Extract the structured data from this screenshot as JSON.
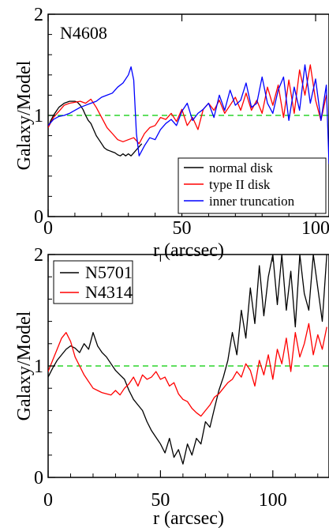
{
  "chart_data": [
    {
      "type": "line",
      "title": "N4608",
      "xlabel": "r (arcsec)",
      "ylabel": "Galaxy/Model",
      "xlim": [
        0,
        105
      ],
      "ylim": [
        0,
        2
      ],
      "x_ticks": [
        "0",
        "50",
        "100"
      ],
      "y_ticks": [
        "0",
        "1",
        "2"
      ],
      "reference_line": {
        "y": 1,
        "color": "#00cc00",
        "style": "dashed"
      },
      "legend": {
        "placement": "bottom-right"
      },
      "series": [
        {
          "name": "normal disk",
          "color": "#000000",
          "x": [
            0,
            1,
            2,
            3,
            4,
            5,
            6,
            7,
            8,
            9,
            10,
            11,
            12,
            13,
            14,
            15,
            16,
            17,
            18,
            19,
            20,
            21,
            22,
            23,
            24,
            25,
            26,
            27,
            28,
            29,
            30,
            31,
            32,
            33,
            34,
            35
          ],
          "y": [
            0.88,
            0.95,
            1.0,
            1.04,
            1.08,
            1.1,
            1.12,
            1.13,
            1.14,
            1.14,
            1.14,
            1.13,
            1.1,
            1.06,
            1.0,
            0.95,
            0.92,
            0.86,
            0.8,
            0.76,
            0.72,
            0.68,
            0.66,
            0.65,
            0.64,
            0.63,
            0.61,
            0.6,
            0.62,
            0.6,
            0.62,
            0.6,
            0.63,
            0.66,
            0.69,
            0.72
          ]
        },
        {
          "name": "type II disk",
          "color": "#ff0000",
          "x": [
            0,
            2,
            4,
            6,
            8,
            10,
            12,
            14,
            16,
            18,
            20,
            22,
            24,
            26,
            28,
            30,
            32,
            34,
            36,
            38,
            40,
            42,
            44,
            46,
            48,
            50,
            52,
            54,
            56,
            58,
            60,
            62,
            64,
            66,
            68,
            70,
            72,
            74,
            76,
            78,
            80,
            82,
            84,
            86,
            88,
            90,
            92,
            94,
            96,
            98,
            100,
            102,
            104
          ],
          "y": [
            0.88,
            0.98,
            1.04,
            1.1,
            1.12,
            1.13,
            1.14,
            1.12,
            1.16,
            1.08,
            0.98,
            0.88,
            0.82,
            0.76,
            0.74,
            0.76,
            0.78,
            0.72,
            0.82,
            0.88,
            0.9,
            0.98,
            0.96,
            1.02,
            0.94,
            1.06,
            0.9,
            0.98,
            0.86,
            1.06,
            1.12,
            1.05,
            1.15,
            1.02,
            1.1,
            1.18,
            1.05,
            1.22,
            1.05,
            1.15,
            1.02,
            1.28,
            1.1,
            1.3,
            0.98,
            1.35,
            1.02,
            1.45,
            1.2,
            1.5,
            1.15,
            0.95,
            1.2
          ]
        },
        {
          "name": "inner truncation",
          "color": "#0000ff",
          "x": [
            0,
            2,
            4,
            6,
            8,
            10,
            12,
            14,
            16,
            18,
            20,
            22,
            24,
            26,
            28,
            30,
            31,
            32,
            33,
            34,
            36,
            38,
            40,
            42,
            44,
            46,
            48,
            50,
            52,
            54,
            56,
            58,
            60,
            62,
            64,
            66,
            68,
            70,
            72,
            74,
            76,
            78,
            80,
            82,
            84,
            86,
            88,
            90,
            92,
            94,
            96,
            98,
            100,
            102,
            104,
            105
          ],
          "y": [
            0.9,
            0.96,
            0.99,
            1.0,
            1.02,
            1.05,
            1.08,
            1.1,
            1.12,
            1.14,
            1.18,
            1.2,
            1.22,
            1.28,
            1.32,
            1.4,
            1.48,
            1.35,
            0.82,
            0.6,
            0.7,
            0.78,
            0.76,
            0.86,
            0.92,
            0.96,
            0.9,
            1.04,
            1.12,
            0.95,
            1.02,
            1.06,
            1.12,
            0.98,
            1.2,
            1.05,
            1.25,
            1.1,
            1.15,
            1.32,
            1.08,
            1.12,
            1.38,
            1.12,
            1.02,
            1.25,
            1.38,
            0.95,
            1.28,
            1.05,
            1.5,
            1.12,
            1.36,
            0.95,
            1.3,
            0.52
          ]
        }
      ]
    },
    {
      "type": "line",
      "title": "",
      "xlabel": "r (arcsec)",
      "ylabel": "Galaxy/Model",
      "xlim": [
        0,
        125
      ],
      "ylim": [
        0,
        2
      ],
      "x_ticks": [
        "0",
        "50",
        "100"
      ],
      "y_ticks": [
        "0",
        "1",
        "2"
      ],
      "reference_line": {
        "y": 1,
        "color": "#00cc00",
        "style": "dashed"
      },
      "legend": {
        "placement": "top-left"
      },
      "series": [
        {
          "name": "N5701",
          "color": "#000000",
          "x": [
            0,
            2,
            4,
            6,
            8,
            10,
            12,
            14,
            16,
            18,
            20,
            22,
            24,
            26,
            28,
            30,
            32,
            34,
            36,
            38,
            40,
            42,
            44,
            46,
            48,
            50,
            52,
            54,
            56,
            58,
            60,
            62,
            64,
            66,
            68,
            70,
            72,
            74,
            76,
            78,
            80,
            82,
            84,
            86,
            88,
            90,
            92,
            94,
            96,
            98,
            100,
            102,
            104,
            106,
            108,
            110,
            112,
            114,
            116,
            118,
            120,
            122,
            124
          ],
          "y": [
            0.9,
            0.98,
            1.05,
            1.1,
            1.15,
            1.18,
            1.16,
            1.12,
            1.2,
            1.15,
            1.3,
            1.18,
            1.12,
            1.08,
            1.02,
            0.96,
            0.92,
            0.88,
            0.78,
            0.7,
            0.65,
            0.6,
            0.5,
            0.42,
            0.36,
            0.3,
            0.22,
            0.35,
            0.18,
            0.25,
            0.12,
            0.3,
            0.2,
            0.35,
            0.3,
            0.5,
            0.45,
            0.62,
            0.78,
            0.9,
            1.05,
            1.3,
            1.1,
            1.5,
            1.25,
            1.7,
            1.38,
            1.9,
            1.45,
            1.8,
            2.0,
            1.55,
            2.0,
            1.5,
            1.85,
            1.35,
            2.0,
            1.65,
            1.5,
            2.0,
            1.7,
            1.4,
            2.0
          ]
        },
        {
          "name": "N4314",
          "color": "#ff0000",
          "x": [
            0,
            2,
            4,
            6,
            8,
            10,
            12,
            14,
            16,
            18,
            20,
            22,
            24,
            26,
            28,
            30,
            32,
            34,
            36,
            38,
            40,
            42,
            44,
            46,
            48,
            50,
            52,
            54,
            56,
            58,
            60,
            62,
            64,
            66,
            68,
            70,
            72,
            74,
            76,
            78,
            80,
            82,
            84,
            86,
            88,
            90,
            92,
            94,
            96,
            98,
            100,
            102,
            104,
            106,
            108,
            110,
            112,
            114,
            116,
            118,
            120,
            122,
            124
          ],
          "y": [
            0.95,
            1.05,
            1.15,
            1.25,
            1.3,
            1.22,
            1.08,
            1.0,
            0.92,
            0.86,
            0.8,
            0.78,
            0.76,
            0.75,
            0.74,
            0.78,
            0.74,
            0.8,
            0.84,
            0.9,
            0.82,
            0.92,
            0.88,
            0.9,
            0.95,
            0.88,
            0.9,
            0.82,
            0.85,
            0.75,
            0.7,
            0.68,
            0.62,
            0.58,
            0.55,
            0.6,
            0.65,
            0.72,
            0.75,
            0.8,
            0.85,
            0.88,
            0.95,
            0.9,
            1.02,
            0.96,
            0.82,
            1.05,
            0.92,
            1.1,
            0.88,
            1.15,
            1.02,
            1.25,
            0.95,
            1.3,
            1.08,
            1.2,
            1.38,
            1.1,
            1.28,
            1.15,
            1.35
          ]
        }
      ]
    }
  ]
}
